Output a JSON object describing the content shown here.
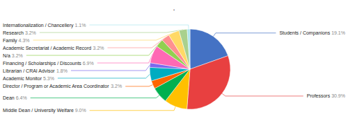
{
  "chart_data": {
    "type": "pie",
    "title": ".",
    "categories": [
      "Students / Companions",
      "Professors",
      "Middle Dean / University Welfare",
      "Dean",
      "Director / Program or Academic Area Coordinator",
      "Academic Monitor",
      "Librarian / CRAI Advisor",
      "Financing / Scholarships / Discounts",
      "N/a",
      "Academic Secretariat / Academic Record",
      "Family",
      "Research",
      "Internationalization / Chancellery"
    ],
    "values": [
      19.1,
      30.9,
      9.0,
      6.4,
      3.2,
      5.3,
      1.8,
      6.9,
      3.2,
      3.2,
      4.3,
      3.2,
      1.1
    ],
    "value_labels": [
      "19.1%",
      "30.9%",
      "9.0%",
      "6.4%",
      "3.2%",
      "5.3%",
      "1.8%",
      "6.9%",
      "3.2%",
      "3.2%",
      "4.3%",
      "3.2%",
      "1.1%"
    ],
    "colors": [
      "#4472C4",
      "#E84040",
      "#FFC000",
      "#00B050",
      "#FF6600",
      "#00ACC1",
      "#7B68EE",
      "#FF69B4",
      "#92D050",
      "#FF9090",
      "#FFD966",
      "#A9D18E",
      "#ACE5EE"
    ],
    "data_labels": true
  }
}
